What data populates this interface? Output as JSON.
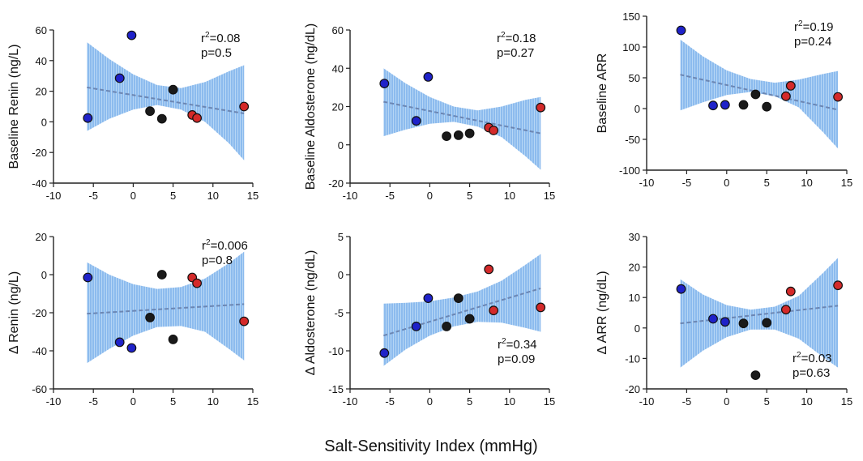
{
  "figure": {
    "shared_xlabel": "Salt-Sensitivity Index (mmHg)",
    "colors": {
      "blue": "#1f22c9",
      "black": "#1a1a1a",
      "red": "#d42a2a",
      "band": "#a9cdf2",
      "band_hatch": "#5a9ae6",
      "trend": "#6b86b3",
      "point_edge": "#111111"
    },
    "legend_note": "Point colour groups: blue, black, red"
  },
  "chart_data": [
    {
      "type": "scatter",
      "title": "",
      "xlabel": "",
      "ylabel": "Baseline Renin (ng/L)",
      "xlim": [
        -10,
        15
      ],
      "ylim": [
        -40,
        60
      ],
      "xticks": [
        "-10",
        "-5",
        "0",
        "5",
        "10",
        "15"
      ],
      "yticks": [
        "-40",
        "-20",
        "0",
        "20",
        "40",
        "60"
      ],
      "stat_r2": "0.08",
      "stat_p": "p=0.5",
      "stat_position": "top-right",
      "points": [
        {
          "x": -5.7,
          "y": 2.5,
          "group": "blue"
        },
        {
          "x": -1.7,
          "y": 28.5,
          "group": "blue"
        },
        {
          "x": -0.2,
          "y": 56.5,
          "group": "blue"
        },
        {
          "x": 2.1,
          "y": 7,
          "group": "black"
        },
        {
          "x": 3.6,
          "y": 2,
          "group": "black"
        },
        {
          "x": 5.0,
          "y": 21,
          "group": "black"
        },
        {
          "x": 7.4,
          "y": 4.5,
          "group": "red"
        },
        {
          "x": 8.0,
          "y": 2.5,
          "group": "red"
        },
        {
          "x": 13.9,
          "y": 10,
          "group": "red"
        }
      ],
      "trend": {
        "x": [
          -5.8,
          13.9
        ],
        "y": [
          22.5,
          5.5
        ]
      },
      "band": {
        "x": [
          -5.8,
          -3,
          0,
          3,
          6,
          9,
          12,
          13.9
        ],
        "upper": [
          52,
          41,
          31,
          24,
          22,
          26,
          33,
          37
        ],
        "lower": [
          -6,
          2,
          8,
          11,
          8,
          0,
          -14,
          -25
        ]
      }
    },
    {
      "type": "scatter",
      "title": "",
      "xlabel": "",
      "ylabel": "Baseline Aldosterone (ng/dL)",
      "xlim": [
        -10,
        15
      ],
      "ylim": [
        -20,
        60
      ],
      "xticks": [
        "-10",
        "-5",
        "0",
        "5",
        "10",
        "15"
      ],
      "yticks": [
        "-20",
        "0",
        "20",
        "40",
        "60"
      ],
      "stat_r2": "0.18",
      "stat_p": "p=0.27",
      "stat_position": "top-right",
      "points": [
        {
          "x": -5.7,
          "y": 32,
          "group": "blue"
        },
        {
          "x": -1.7,
          "y": 12.5,
          "group": "blue"
        },
        {
          "x": -0.2,
          "y": 35.5,
          "group": "blue"
        },
        {
          "x": 2.1,
          "y": 4.5,
          "group": "black"
        },
        {
          "x": 3.6,
          "y": 5,
          "group": "black"
        },
        {
          "x": 5.0,
          "y": 6,
          "group": "black"
        },
        {
          "x": 7.4,
          "y": 9,
          "group": "red"
        },
        {
          "x": 8.0,
          "y": 7.5,
          "group": "red"
        },
        {
          "x": 13.9,
          "y": 19.5,
          "group": "red"
        }
      ],
      "trend": {
        "x": [
          -5.8,
          13.9
        ],
        "y": [
          22.5,
          6
        ]
      },
      "band": {
        "x": [
          -5.8,
          -3,
          0,
          3,
          6,
          9,
          12,
          13.9
        ],
        "upper": [
          40,
          32,
          25,
          20,
          18,
          20,
          23.5,
          25
        ],
        "lower": [
          4.5,
          8,
          11,
          12,
          9.5,
          4,
          -6,
          -13
        ]
      }
    },
    {
      "type": "scatter",
      "title": "",
      "xlabel": "",
      "ylabel": "Baseline ARR",
      "xlim": [
        -10,
        15
      ],
      "ylim": [
        -100,
        150
      ],
      "xticks": [
        "-10",
        "-5",
        "0",
        "5",
        "10",
        "15"
      ],
      "yticks": [
        "-100",
        "-50",
        "0",
        "50",
        "100",
        "150"
      ],
      "stat_r2": "0.19",
      "stat_p": "p=0.24",
      "stat_position": "top-right",
      "points": [
        {
          "x": -5.7,
          "y": 127,
          "group": "blue"
        },
        {
          "x": -1.7,
          "y": 5,
          "group": "blue"
        },
        {
          "x": -0.2,
          "y": 6,
          "group": "blue"
        },
        {
          "x": 2.1,
          "y": 6,
          "group": "black"
        },
        {
          "x": 3.6,
          "y": 23,
          "group": "black"
        },
        {
          "x": 5.0,
          "y": 3,
          "group": "black"
        },
        {
          "x": 7.4,
          "y": 20,
          "group": "red"
        },
        {
          "x": 8.0,
          "y": 37,
          "group": "red"
        },
        {
          "x": 13.9,
          "y": 19,
          "group": "red"
        }
      ],
      "trend": {
        "x": [
          -5.8,
          13.9
        ],
        "y": [
          55,
          -2
        ]
      },
      "band": {
        "x": [
          -5.8,
          -3,
          0,
          3,
          6,
          9,
          12,
          13.9
        ],
        "upper": [
          112,
          85,
          62,
          48,
          42,
          47,
          56,
          61
        ],
        "lower": [
          -3,
          10,
          22,
          27,
          20,
          2,
          -38,
          -65
        ]
      }
    },
    {
      "type": "scatter",
      "title": "",
      "xlabel": "",
      "ylabel": "Δ Renin (ng/L)",
      "xlim": [
        -10,
        15
      ],
      "ylim": [
        -60,
        20
      ],
      "xticks": [
        "-10",
        "-5",
        "0",
        "5",
        "10",
        "15"
      ],
      "yticks": [
        "-60",
        "-40",
        "-20",
        "0",
        "20"
      ],
      "stat_r2": "0.006",
      "stat_p": "p=0.8",
      "stat_position": "top-right",
      "points": [
        {
          "x": -5.7,
          "y": -1.5,
          "group": "blue"
        },
        {
          "x": -1.7,
          "y": -35.5,
          "group": "blue"
        },
        {
          "x": -0.2,
          "y": -38.5,
          "group": "blue"
        },
        {
          "x": 2.1,
          "y": -22.5,
          "group": "black"
        },
        {
          "x": 3.6,
          "y": 0,
          "group": "black"
        },
        {
          "x": 5.0,
          "y": -34,
          "group": "black"
        },
        {
          "x": 7.4,
          "y": -1.5,
          "group": "red"
        },
        {
          "x": 8.0,
          "y": -4.5,
          "group": "red"
        },
        {
          "x": 13.9,
          "y": -24.5,
          "group": "red"
        }
      ],
      "trend": {
        "x": [
          -5.8,
          13.9
        ],
        "y": [
          -20.5,
          -15.5
        ]
      },
      "band": {
        "x": [
          -5.8,
          -3,
          0,
          3,
          6,
          9,
          12,
          13.9
        ],
        "upper": [
          6.5,
          0,
          -5,
          -7.5,
          -6.5,
          -2,
          6,
          12
        ],
        "lower": [
          -46.5,
          -39,
          -32,
          -27.5,
          -27,
          -30,
          -39,
          -45
        ]
      }
    },
    {
      "type": "scatter",
      "title": "",
      "xlabel": "",
      "ylabel": "Δ Aldosterone (ng/dL)",
      "xlim": [
        -10,
        15
      ],
      "ylim": [
        -15,
        5
      ],
      "xticks": [
        "-10",
        "-5",
        "0",
        "5",
        "10",
        "15"
      ],
      "yticks": [
        "-15",
        "-10",
        "-5",
        "0",
        "5"
      ],
      "stat_r2": "0.34",
      "stat_p": "p=0.09",
      "stat_position": "bottom-right",
      "points": [
        {
          "x": -5.7,
          "y": -10.3,
          "group": "blue"
        },
        {
          "x": -1.7,
          "y": -6.8,
          "group": "blue"
        },
        {
          "x": -0.2,
          "y": -3.1,
          "group": "blue"
        },
        {
          "x": 2.1,
          "y": -6.8,
          "group": "black"
        },
        {
          "x": 3.6,
          "y": -3.1,
          "group": "black"
        },
        {
          "x": 5.0,
          "y": -5.8,
          "group": "black"
        },
        {
          "x": 7.4,
          "y": 0.7,
          "group": "red"
        },
        {
          "x": 8.0,
          "y": -4.7,
          "group": "red"
        },
        {
          "x": 13.9,
          "y": -4.3,
          "group": "red"
        }
      ],
      "trend": {
        "x": [
          -5.8,
          13.9
        ],
        "y": [
          -8,
          -1.8
        ]
      },
      "band": {
        "x": [
          -5.8,
          -3,
          0,
          3,
          6,
          9,
          12,
          13.9
        ],
        "upper": [
          -3.8,
          -3.7,
          -3.5,
          -3,
          -2.2,
          -0.8,
          1.3,
          2.7
        ],
        "lower": [
          -12,
          -9.8,
          -8,
          -6.8,
          -6.2,
          -6.3,
          -7,
          -7.5
        ]
      }
    },
    {
      "type": "scatter",
      "title": "",
      "xlabel": "",
      "ylabel": "Δ ARR (ng/dL)",
      "xlim": [
        -10,
        15
      ],
      "ylim": [
        -20,
        30
      ],
      "xticks": [
        "-10",
        "-5",
        "0",
        "5",
        "10",
        "15"
      ],
      "yticks": [
        "-20",
        "-10",
        "0",
        "10",
        "20",
        "30"
      ],
      "stat_r2": "0.03",
      "stat_p": "p=0.63",
      "stat_position": "bottom-right",
      "points": [
        {
          "x": -5.7,
          "y": 12.8,
          "group": "blue"
        },
        {
          "x": -1.7,
          "y": 3,
          "group": "blue"
        },
        {
          "x": -0.2,
          "y": 2,
          "group": "blue"
        },
        {
          "x": 2.1,
          "y": 1.5,
          "group": "black"
        },
        {
          "x": 3.6,
          "y": -15.5,
          "group": "black"
        },
        {
          "x": 5.0,
          "y": 1.7,
          "group": "black"
        },
        {
          "x": 7.4,
          "y": 6,
          "group": "red"
        },
        {
          "x": 8.0,
          "y": 12,
          "group": "red"
        },
        {
          "x": 13.9,
          "y": 14,
          "group": "red"
        }
      ],
      "trend": {
        "x": [
          -5.8,
          13.9
        ],
        "y": [
          1.5,
          7.3
        ]
      },
      "band": {
        "x": [
          -5.8,
          -3,
          0,
          3,
          6,
          9,
          12,
          13.9
        ],
        "upper": [
          16,
          11,
          7.5,
          6,
          7,
          10.5,
          18,
          23
        ],
        "lower": [
          -13,
          -7.5,
          -3,
          -0.5,
          -0.5,
          -3.5,
          -9.5,
          -13
        ]
      }
    }
  ]
}
